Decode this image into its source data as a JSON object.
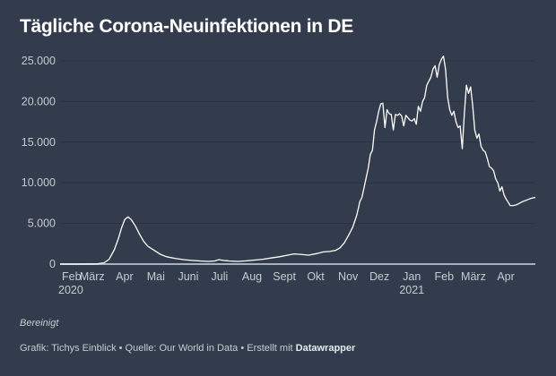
{
  "header": {
    "title": "Tägliche Corona-Neuinfektionen in DE"
  },
  "footer": {
    "note": "Bereinigt",
    "credit_prefix": "Grafik: Tichys Einblick • Quelle: Our World in Data • Erstellt mit ",
    "credit_tool": "Datawrapper"
  },
  "colors": {
    "background": "#323c4c",
    "line": "#ffffff",
    "grid": "#283240",
    "axis": "#aab0b8",
    "text": "#c6cbd2"
  },
  "chart_data": {
    "type": "line",
    "title": "Tägliche Corona-Neuinfektionen in DE",
    "xlabel": "",
    "ylabel": "",
    "ylim": [
      0,
      25000
    ],
    "xlim_days": [
      0,
      455
    ],
    "yticks": [
      {
        "value": 0,
        "label": "0"
      },
      {
        "value": 5000,
        "label": "5.000"
      },
      {
        "value": 10000,
        "label": "10.000"
      },
      {
        "value": 15000,
        "label": "15.000"
      },
      {
        "value": 20000,
        "label": "20.000"
      },
      {
        "value": 25000,
        "label": "25.000"
      }
    ],
    "xticks": [
      {
        "day": 0,
        "label": "Feb",
        "sub": "2020"
      },
      {
        "day": 29,
        "label": "März",
        "sub": ""
      },
      {
        "day": 60,
        "label": "Apr",
        "sub": ""
      },
      {
        "day": 90,
        "label": "Mai",
        "sub": ""
      },
      {
        "day": 121,
        "label": "Juni",
        "sub": ""
      },
      {
        "day": 151,
        "label": "Juli",
        "sub": ""
      },
      {
        "day": 182,
        "label": "Aug",
        "sub": ""
      },
      {
        "day": 213,
        "label": "Sept",
        "sub": ""
      },
      {
        "day": 243,
        "label": "Okt",
        "sub": ""
      },
      {
        "day": 274,
        "label": "Nov",
        "sub": ""
      },
      {
        "day": 304,
        "label": "Dez",
        "sub": ""
      },
      {
        "day": 335,
        "label": "Jan",
        "sub": "2021"
      },
      {
        "day": 366,
        "label": "Feb",
        "sub": ""
      },
      {
        "day": 394,
        "label": "März",
        "sub": ""
      },
      {
        "day": 425,
        "label": "Apr",
        "sub": ""
      }
    ],
    "grid": true,
    "series": [
      {
        "name": "Neuinfektionen",
        "points": [
          [
            0,
            0
          ],
          [
            20,
            0
          ],
          [
            35,
            20
          ],
          [
            42,
            150
          ],
          [
            47,
            600
          ],
          [
            52,
            1800
          ],
          [
            56,
            3200
          ],
          [
            59,
            4500
          ],
          [
            62,
            5500
          ],
          [
            65,
            5800
          ],
          [
            68,
            5500
          ],
          [
            72,
            4700
          ],
          [
            76,
            3700
          ],
          [
            80,
            2800
          ],
          [
            84,
            2200
          ],
          [
            90,
            1700
          ],
          [
            96,
            1200
          ],
          [
            102,
            900
          ],
          [
            110,
            700
          ],
          [
            118,
            550
          ],
          [
            126,
            450
          ],
          [
            134,
            380
          ],
          [
            142,
            330
          ],
          [
            148,
            380
          ],
          [
            152,
            550
          ],
          [
            156,
            450
          ],
          [
            162,
            380
          ],
          [
            170,
            330
          ],
          [
            178,
            400
          ],
          [
            186,
            500
          ],
          [
            194,
            600
          ],
          [
            202,
            750
          ],
          [
            210,
            900
          ],
          [
            218,
            1100
          ],
          [
            224,
            1250
          ],
          [
            230,
            1200
          ],
          [
            238,
            1100
          ],
          [
            246,
            1300
          ],
          [
            252,
            1500
          ],
          [
            258,
            1550
          ],
          [
            264,
            1700
          ],
          [
            268,
            2000
          ],
          [
            272,
            2600
          ],
          [
            276,
            3500
          ],
          [
            280,
            4500
          ],
          [
            284,
            6000
          ],
          [
            287,
            7700
          ],
          [
            289,
            8200
          ],
          [
            292,
            10000
          ],
          [
            295,
            11800
          ],
          [
            297,
            13500
          ],
          [
            299,
            14000
          ],
          [
            301,
            16500
          ],
          [
            303,
            17500
          ],
          [
            305,
            18800
          ],
          [
            307,
            19700
          ],
          [
            309,
            19800
          ],
          [
            311,
            16800
          ],
          [
            313,
            19000
          ],
          [
            315,
            18500
          ],
          [
            317,
            18400
          ],
          [
            319,
            16500
          ],
          [
            321,
            18400
          ],
          [
            323,
            18300
          ],
          [
            325,
            18500
          ],
          [
            327,
            18200
          ],
          [
            329,
            17000
          ],
          [
            331,
            18300
          ],
          [
            333,
            18000
          ],
          [
            335,
            17700
          ],
          [
            337,
            17600
          ],
          [
            339,
            17900
          ],
          [
            341,
            17200
          ],
          [
            343,
            19400
          ],
          [
            345,
            18800
          ],
          [
            347,
            20000
          ],
          [
            349,
            20500
          ],
          [
            351,
            22000
          ],
          [
            353,
            22500
          ],
          [
            355,
            23000
          ],
          [
            357,
            24000
          ],
          [
            359,
            24400
          ],
          [
            361,
            23000
          ],
          [
            363,
            24500
          ],
          [
            365,
            25200
          ],
          [
            367,
            25600
          ],
          [
            369,
            24000
          ],
          [
            371,
            20500
          ],
          [
            373,
            19000
          ],
          [
            375,
            18300
          ],
          [
            377,
            18800
          ],
          [
            379,
            17500
          ],
          [
            381,
            16800
          ],
          [
            383,
            17000
          ],
          [
            385,
            14200
          ],
          [
            387,
            18500
          ],
          [
            389,
            22000
          ],
          [
            391,
            21000
          ],
          [
            393,
            21800
          ],
          [
            395,
            19500
          ],
          [
            397,
            16500
          ],
          [
            399,
            15500
          ],
          [
            401,
            16000
          ],
          [
            403,
            14500
          ],
          [
            405,
            14000
          ],
          [
            407,
            13800
          ],
          [
            409,
            13000
          ],
          [
            411,
            12000
          ],
          [
            413,
            11800
          ],
          [
            415,
            11500
          ],
          [
            417,
            10500
          ],
          [
            419,
            10000
          ],
          [
            421,
            9000
          ],
          [
            423,
            9500
          ],
          [
            425,
            8500
          ],
          [
            427,
            8000
          ],
          [
            429,
            7600
          ],
          [
            431,
            7200
          ],
          [
            434,
            7200
          ],
          [
            437,
            7300
          ],
          [
            440,
            7500
          ],
          [
            443,
            7700
          ],
          [
            447,
            7900
          ],
          [
            451,
            8100
          ],
          [
            455,
            8200
          ]
        ]
      }
    ]
  }
}
